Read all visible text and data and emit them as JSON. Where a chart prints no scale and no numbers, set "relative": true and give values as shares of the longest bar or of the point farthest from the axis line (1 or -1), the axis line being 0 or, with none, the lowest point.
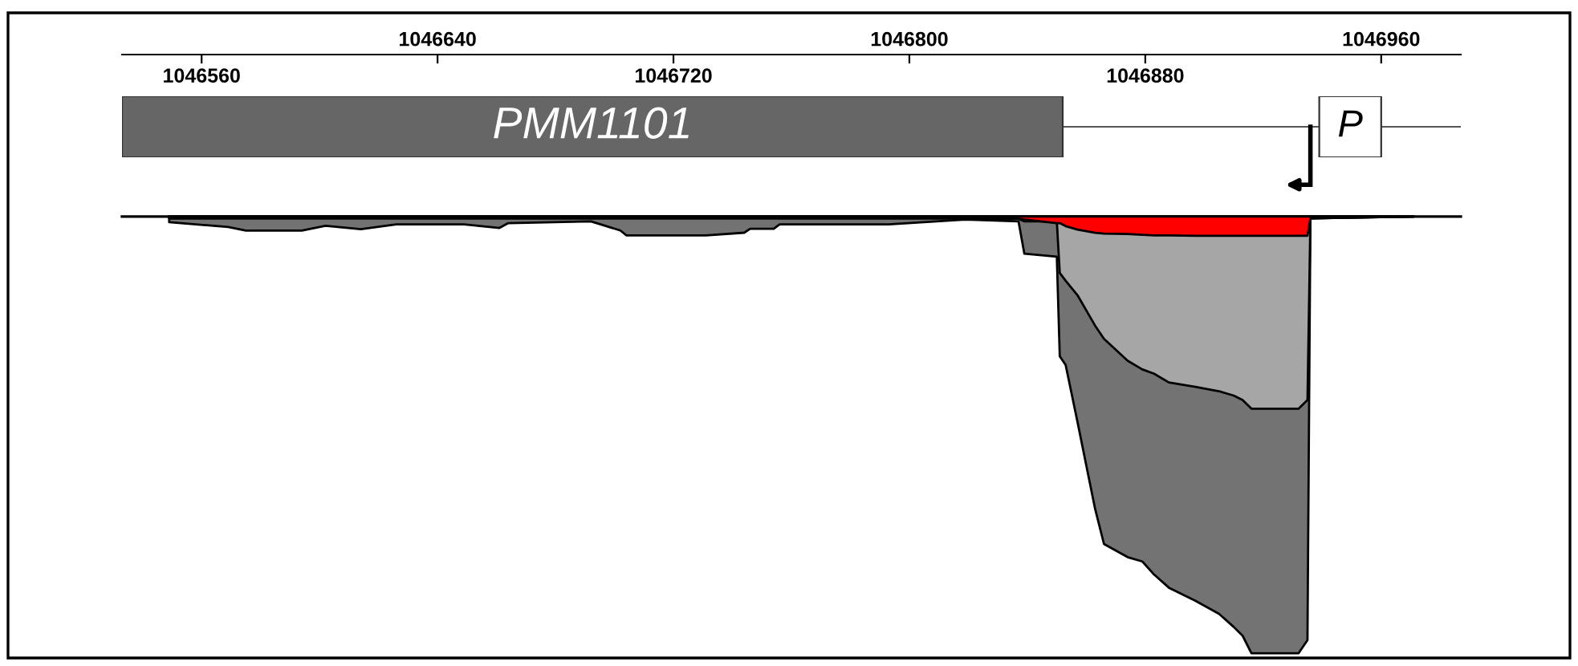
{
  "chart_data": [
    {
      "type": "area",
      "relative": true,
      "x": [
        1046549,
        1046569,
        1046575,
        1046594,
        1046602,
        1046614,
        1046626,
        1046649,
        1046661,
        1046664,
        1046692,
        1046702,
        1046704,
        1046731,
        1046744,
        1046746,
        1046754,
        1046756,
        1046793,
        1046819,
        1046837,
        1046839,
        1046850,
        1046851,
        1046853,
        1046857,
        1046863,
        1046866,
        1046874,
        1046879,
        1046883,
        1046888,
        1046897,
        1046905,
        1046910,
        1046913,
        1046916,
        1046932,
        1046935,
        1046936,
        1046971
      ],
      "xlim": [
        1046533,
        1046987
      ],
      "xticks": [
        1046560,
        1046720,
        1046880
      ],
      "x2lim": [
        1046533,
        1046987
      ],
      "x2ticks": [
        1046640,
        1046800,
        1046960
      ],
      "series": [
        {
          "color": "#737373",
          "values": [
            -0.013,
            -0.024,
            -0.032,
            -0.032,
            -0.021,
            -0.029,
            -0.018,
            -0.018,
            -0.026,
            -0.015,
            -0.011,
            -0.032,
            -0.043,
            -0.043,
            -0.037,
            -0.028,
            -0.028,
            -0.018,
            -0.018,
            -0.007,
            -0.011,
            -0.085,
            -0.092,
            -0.32,
            -0.34,
            -0.47,
            -0.67,
            -0.75,
            -0.78,
            -0.79,
            -0.82,
            -0.85,
            -0.88,
            -0.91,
            -0.94,
            -0.96,
            -1,
            -1,
            -0.97,
            -0.004,
            0
          ]
        },
        {
          "color": "#a6a6a6",
          "values": [
            -0.004,
            -0.004,
            -0.004,
            -0.004,
            -0.004,
            -0.004,
            -0.004,
            -0.004,
            -0.004,
            -0.004,
            -0.004,
            -0.004,
            -0.004,
            -0.004,
            -0.004,
            -0.004,
            -0.004,
            -0.004,
            -0.004,
            -0.004,
            -0.005,
            -0.011,
            -0.011,
            -0.129,
            -0.147,
            -0.18,
            -0.25,
            -0.28,
            -0.33,
            -0.35,
            -0.36,
            -0.38,
            -0.39,
            -0.4,
            -0.41,
            -0.42,
            -0.44,
            -0.44,
            -0.42,
            -0.004,
            0
          ]
        },
        {
          "color": "#ff0000",
          "values": [
            -0.004,
            -0.004,
            -0.004,
            -0.004,
            -0.004,
            -0.004,
            -0.004,
            -0.004,
            -0.004,
            -0.004,
            -0.004,
            -0.004,
            -0.004,
            -0.004,
            -0.004,
            -0.004,
            -0.004,
            -0.004,
            -0.004,
            -0.004,
            -0.005,
            -0.007,
            -0.015,
            -0.015,
            -0.022,
            -0.03,
            -0.037,
            -0.039,
            -0.04,
            -0.042,
            -0.043,
            -0.043,
            -0.044,
            -0.044,
            -0.044,
            -0.044,
            -0.044,
            -0.044,
            -0.044,
            -0.004,
            0
          ]
        }
      ]
    },
    {
      "type": "bar",
      "orientation": "horizontal",
      "categories": [
        null
      ],
      "xlim": [
        1046533,
        1046987
      ],
      "tick_labels": false,
      "series": [
        {
          "color": "#666666",
          "base": [
            1046533
          ],
          "values": [
            319
          ]
        },
        {
          "color": "#ffffff",
          "base": [
            1046939
          ],
          "values": [
            21
          ]
        }
      ],
      "annotations": [
        "PMM1101",
        "P"
      ]
    }
  ]
}
